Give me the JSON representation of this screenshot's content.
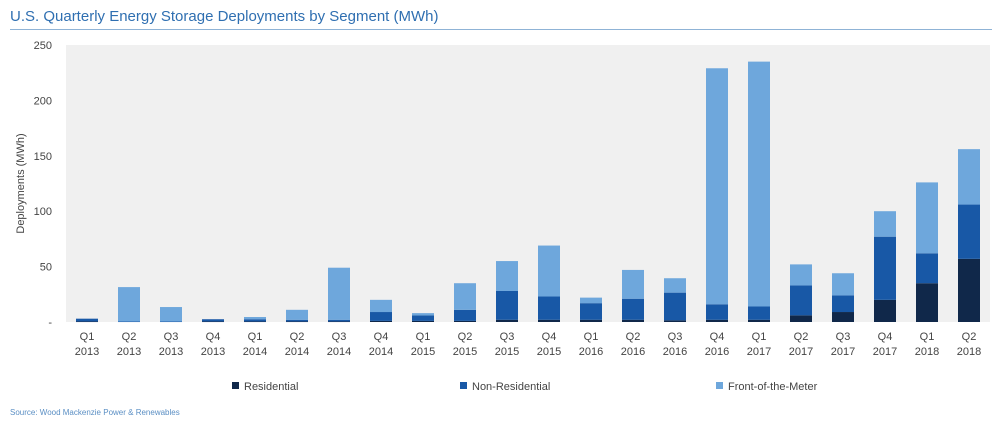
{
  "title": "U.S. Quarterly Energy Storage Deployments by Segment (MWh)",
  "source": "Source: Wood Mackenzie Power & Renewables",
  "chart_data": {
    "type": "bar",
    "stacked": true,
    "categories": [
      [
        "Q1",
        "2013"
      ],
      [
        "Q2",
        "2013"
      ],
      [
        "Q3",
        "2013"
      ],
      [
        "Q4",
        "2013"
      ],
      [
        "Q1",
        "2014"
      ],
      [
        "Q2",
        "2014"
      ],
      [
        "Q3",
        "2014"
      ],
      [
        "Q4",
        "2014"
      ],
      [
        "Q1",
        "2015"
      ],
      [
        "Q2",
        "2015"
      ],
      [
        "Q3",
        "2015"
      ],
      [
        "Q4",
        "2015"
      ],
      [
        "Q1",
        "2016"
      ],
      [
        "Q2",
        "2016"
      ],
      [
        "Q3",
        "2016"
      ],
      [
        "Q4",
        "2016"
      ],
      [
        "Q1",
        "2017"
      ],
      [
        "Q2",
        "2017"
      ],
      [
        "Q3",
        "2017"
      ],
      [
        "Q4",
        "2017"
      ],
      [
        "Q1",
        "2018"
      ],
      [
        "Q2",
        "2018"
      ]
    ],
    "series": [
      {
        "name": "Residential",
        "color": "#10284a",
        "values": [
          0.5,
          0,
          0,
          0.5,
          0.5,
          0.5,
          0.5,
          1,
          1,
          1,
          2,
          2,
          2,
          2,
          1.5,
          2,
          2,
          6,
          9,
          20,
          35,
          57
        ]
      },
      {
        "name": "Non-Residential",
        "color": "#1858a6",
        "values": [
          2.5,
          0.5,
          0.5,
          2,
          2,
          1.5,
          1.5,
          8,
          5,
          10,
          26,
          21,
          15,
          19,
          25,
          14,
          12,
          27,
          15,
          57,
          27,
          49
        ]
      },
      {
        "name": "Front-of-the-Meter",
        "color": "#6ea7dc",
        "values": [
          0,
          31,
          13,
          0,
          2,
          9,
          47,
          11,
          2,
          24,
          27,
          46,
          5,
          26,
          13,
          213,
          221,
          19,
          20,
          23,
          64,
          50
        ]
      }
    ],
    "ylabel": "Deployments (MWh)",
    "xlabel": "",
    "ylim": [
      0,
      250
    ],
    "yticks": [
      0,
      50,
      100,
      150,
      200,
      250
    ],
    "ytick_labels": [
      "-",
      "50",
      "100",
      "150",
      "200",
      "250"
    ],
    "grid": false,
    "plot_background": "#f0f0f0",
    "legend_position": "bottom"
  }
}
